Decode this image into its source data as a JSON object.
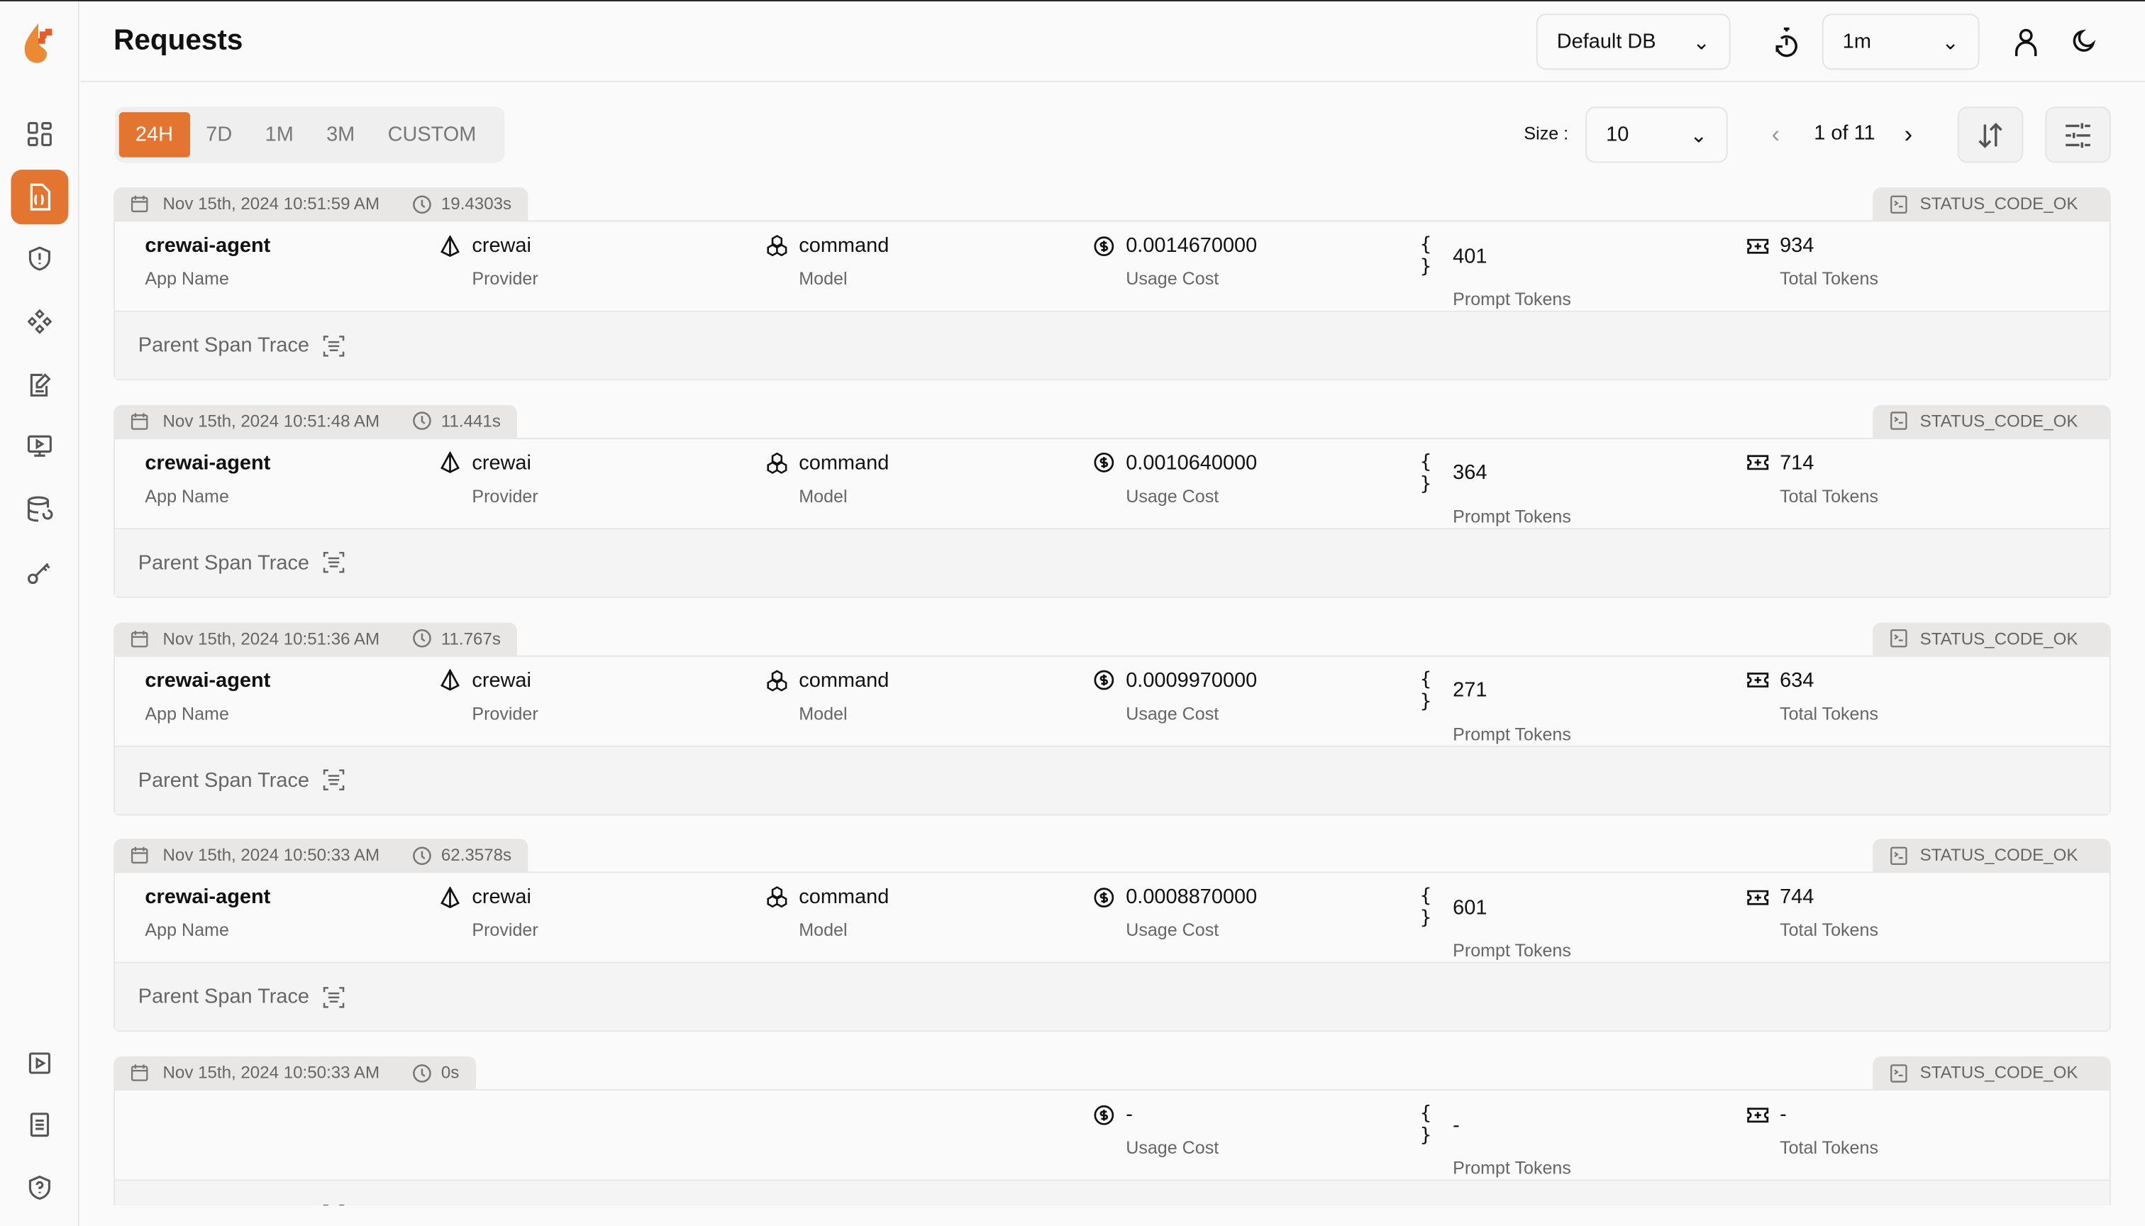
{
  "header": {
    "title": "Requests",
    "db_select": "Default DB",
    "refresh_select": "1m"
  },
  "filters": {
    "tabs": [
      "24H",
      "7D",
      "1M",
      "3M",
      "CUSTOM"
    ],
    "active": "24H"
  },
  "pagination": {
    "size_label": "Size :",
    "size": "10",
    "page": "1 of 11"
  },
  "labels": {
    "app": "App Name",
    "provider": "Provider",
    "model": "Model",
    "cost": "Usage Cost",
    "prompt": "Prompt Tokens",
    "total": "Total Tokens",
    "trace": "Parent Span Trace"
  },
  "requests": [
    {
      "time": "Nov 15th, 2024 10:51:59 AM",
      "duration": "19.4303s",
      "status": "STATUS_CODE_OK",
      "app": "crewai-agent",
      "provider": "crewai",
      "model": "command",
      "cost": "0.0014670000",
      "prompt": "401",
      "total": "934"
    },
    {
      "time": "Nov 15th, 2024 10:51:48 AM",
      "duration": "11.441s",
      "status": "STATUS_CODE_OK",
      "app": "crewai-agent",
      "provider": "crewai",
      "model": "command",
      "cost": "0.0010640000",
      "prompt": "364",
      "total": "714"
    },
    {
      "time": "Nov 15th, 2024 10:51:36 AM",
      "duration": "11.767s",
      "status": "STATUS_CODE_OK",
      "app": "crewai-agent",
      "provider": "crewai",
      "model": "command",
      "cost": "0.0009970000",
      "prompt": "271",
      "total": "634"
    },
    {
      "time": "Nov 15th, 2024 10:50:33 AM",
      "duration": "62.3578s",
      "status": "STATUS_CODE_OK",
      "app": "crewai-agent",
      "provider": "crewai",
      "model": "command",
      "cost": "0.0008870000",
      "prompt": "601",
      "total": "744"
    },
    {
      "time": "Nov 15th, 2024 10:50:33 AM",
      "duration": "0s",
      "status": "STATUS_CODE_OK",
      "app": "",
      "provider": "",
      "model": "",
      "cost": "-",
      "prompt": "-",
      "total": "-"
    }
  ],
  "colors": {
    "accent": "#e37530"
  }
}
